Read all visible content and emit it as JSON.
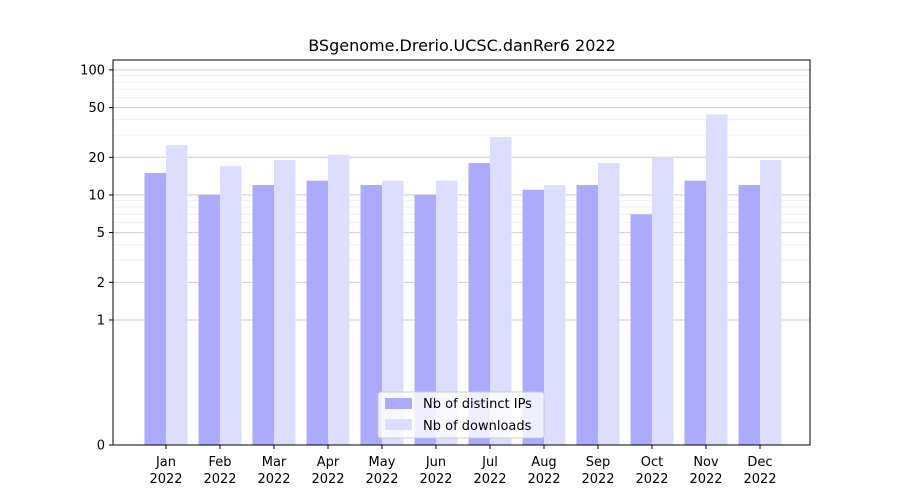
{
  "chart_data": {
    "type": "bar",
    "title": "BSgenome.Drerio.UCSC.danRer6 2022",
    "xlabel": "",
    "ylabel": "",
    "y_scale": "symlog",
    "ylim": [
      0,
      120
    ],
    "y_ticks": [
      0,
      1,
      2,
      5,
      10,
      20,
      50,
      100
    ],
    "categories": [
      {
        "month": "Jan",
        "year": "2022"
      },
      {
        "month": "Feb",
        "year": "2022"
      },
      {
        "month": "Mar",
        "year": "2022"
      },
      {
        "month": "Apr",
        "year": "2022"
      },
      {
        "month": "May",
        "year": "2022"
      },
      {
        "month": "Jun",
        "year": "2022"
      },
      {
        "month": "Jul",
        "year": "2022"
      },
      {
        "month": "Aug",
        "year": "2022"
      },
      {
        "month": "Sep",
        "year": "2022"
      },
      {
        "month": "Oct",
        "year": "2022"
      },
      {
        "month": "Nov",
        "year": "2022"
      },
      {
        "month": "Dec",
        "year": "2022"
      }
    ],
    "series": [
      {
        "name": "Nb of distinct IPs",
        "color": "#aaaaff",
        "values": [
          15,
          10,
          12,
          13,
          12,
          10,
          18,
          11,
          12,
          7,
          13,
          12
        ]
      },
      {
        "name": "Nb of downloads",
        "color": "#ddddff",
        "values": [
          25,
          17,
          19,
          21,
          13,
          13,
          29,
          12,
          18,
          20,
          44,
          19
        ]
      }
    ],
    "grid": true,
    "legend": "bottom-center"
  }
}
